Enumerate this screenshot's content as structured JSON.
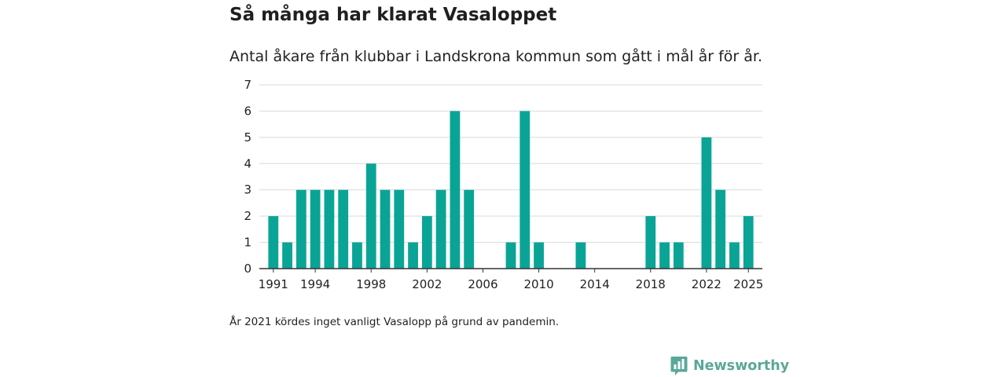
{
  "title": "Så många har klarat Vasaloppet",
  "subtitle": "Antal åkare från klubbar i Landskrona kommun som gått i mål år för år.",
  "note": "År 2021 kördes inget vanligt Vasalopp på grund av pandemin.",
  "brand": {
    "name": "Newsworthy",
    "icon": "newsworthy-logo-icon",
    "color": "#5aa89a"
  },
  "colors": {
    "bar": "#0aa496",
    "grid": "#d9d9d9",
    "axis": "#333333"
  },
  "chart_data": {
    "type": "bar",
    "title": "Så många har klarat Vasaloppet",
    "xlabel": "",
    "ylabel": "",
    "ylim": [
      0,
      7
    ],
    "yticks": [
      0,
      1,
      2,
      3,
      4,
      5,
      6,
      7
    ],
    "xlim": [
      1990,
      2026
    ],
    "xticks": [
      1991,
      1994,
      1998,
      2002,
      2006,
      2010,
      2014,
      2018,
      2022,
      2025
    ],
    "grid": true,
    "series": [
      {
        "name": "Antal åkare",
        "x": [
          1991,
          1992,
          1993,
          1994,
          1995,
          1996,
          1997,
          1998,
          1999,
          2000,
          2001,
          2002,
          2003,
          2004,
          2005,
          2008,
          2009,
          2010,
          2013,
          2018,
          2019,
          2020,
          2022,
          2023,
          2024,
          2025
        ],
        "values": [
          2,
          1,
          3,
          3,
          3,
          3,
          1,
          4,
          3,
          3,
          1,
          2,
          3,
          6,
          3,
          1,
          6,
          1,
          1,
          2,
          1,
          1,
          5,
          3,
          1,
          2
        ]
      }
    ]
  }
}
